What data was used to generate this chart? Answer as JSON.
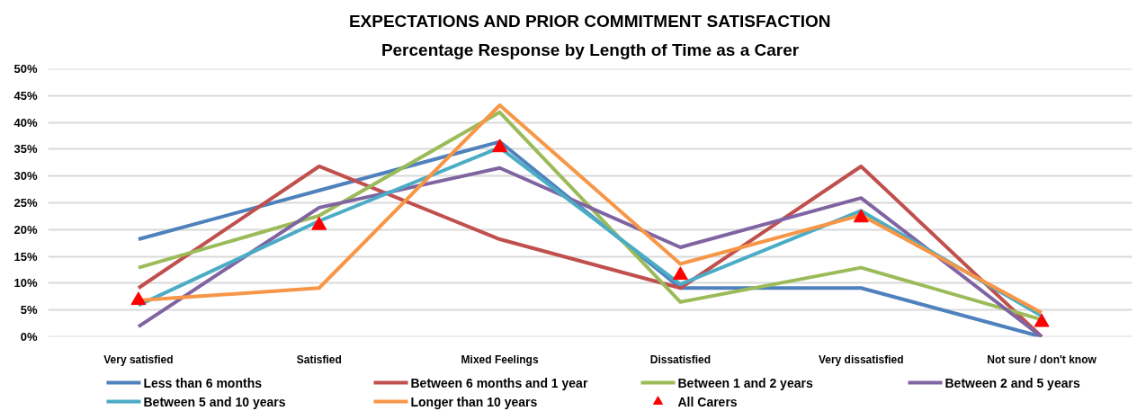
{
  "chart_data": {
    "type": "line",
    "title": "EXPECTATIONS AND PRIOR COMMITMENT SATISFACTION",
    "subtitle": "Percentage Response by Length of Time as a Carer",
    "categories": [
      "Very satisfied",
      "Satisfied",
      "Mixed Feelings",
      "Dissatisfied",
      "Very dissatisfied",
      "Not sure / don't know"
    ],
    "ylim": [
      0,
      50
    ],
    "yticks": [
      {
        "value": 0,
        "label": "0%"
      },
      {
        "value": 5,
        "label": "5%"
      },
      {
        "value": 10,
        "label": "10%"
      },
      {
        "value": 15,
        "label": "15%"
      },
      {
        "value": 20,
        "label": "20%"
      },
      {
        "value": 25,
        "label": "25%"
      },
      {
        "value": 30,
        "label": "30%"
      },
      {
        "value": 35,
        "label": "35%"
      },
      {
        "value": 40,
        "label": "40%"
      },
      {
        "value": 45,
        "label": "45%"
      },
      {
        "value": 50,
        "label": "50%"
      }
    ],
    "grid": "y",
    "legend": "bottom",
    "line_style": "solid",
    "series": [
      {
        "name": "Less than 6 months",
        "color": "#4f81bd",
        "values": [
          18.2,
          27.3,
          36.4,
          9.1,
          9.1,
          0
        ]
      },
      {
        "name": "Between 6 months and 1 year",
        "color": "#c0504d",
        "values": [
          9.1,
          31.8,
          18.2,
          9.1,
          31.8,
          0
        ]
      },
      {
        "name": "Between 1 and 2 years",
        "color": "#9bbb59",
        "values": [
          12.9,
          22.6,
          41.9,
          6.5,
          12.9,
          3.2
        ]
      },
      {
        "name": "Between 2 and 5 years",
        "color": "#8064a2",
        "values": [
          1.9,
          24.1,
          31.5,
          16.7,
          25.9,
          0
        ]
      },
      {
        "name": "Between 5 and 10 years",
        "color": "#4bacc6",
        "values": [
          5.9,
          21.6,
          35.3,
          9.8,
          23.5,
          3.9
        ]
      },
      {
        "name": "Longer than 10 years",
        "color": "#f79646",
        "values": [
          6.8,
          9.1,
          43.2,
          13.6,
          22.7,
          4.5
        ]
      },
      {
        "name": "All Carers",
        "type": "scatter",
        "marker": "triangle",
        "color": "#ff0000",
        "values": [
          6.8,
          20.8,
          35.3,
          11.5,
          22.2,
          2.7
        ]
      }
    ]
  }
}
